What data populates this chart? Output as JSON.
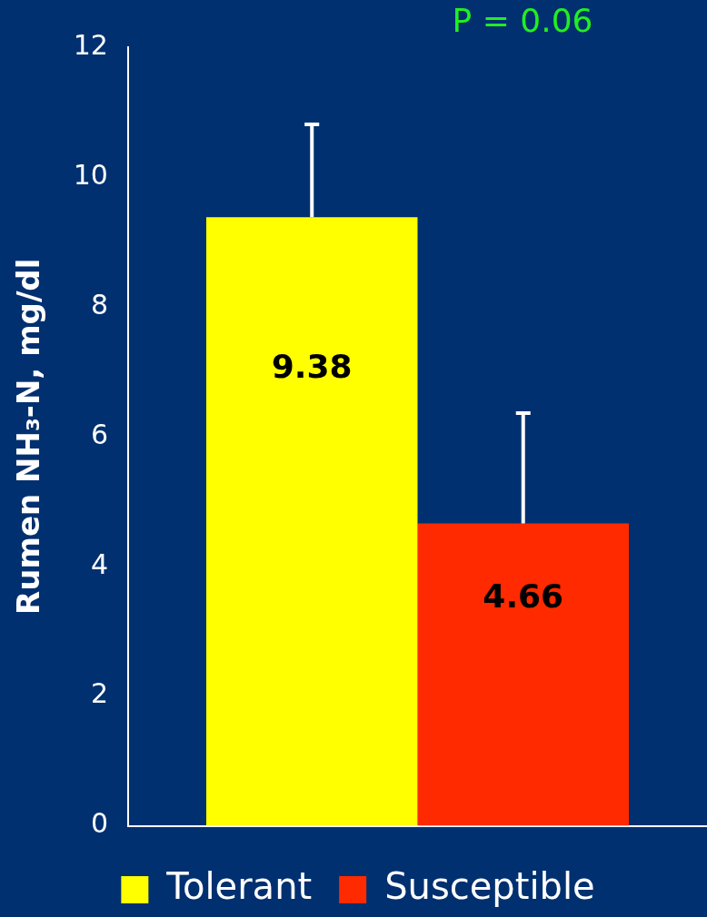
{
  "chart_data": {
    "type": "bar",
    "ylabel": "Rumen NH₃-N, mg/dl",
    "categories": [
      null
    ],
    "series": [
      {
        "name": "Tolerant",
        "color": "#ffff00",
        "values": [
          9.38
        ],
        "errors": [
          [
            9.38,
            10.81
          ]
        ]
      },
      {
        "name": "Susceptible",
        "color": "#ff2a00",
        "values": [
          4.66
        ],
        "errors": [
          [
            4.66,
            6.36
          ]
        ]
      }
    ],
    "ylim": [
      0,
      12
    ],
    "yticks": [
      0,
      2,
      4,
      6,
      8,
      10,
      12
    ],
    "grid": false,
    "legend": "bottom",
    "data_labels": true,
    "annotations": [
      "P = 0.06"
    ]
  }
}
